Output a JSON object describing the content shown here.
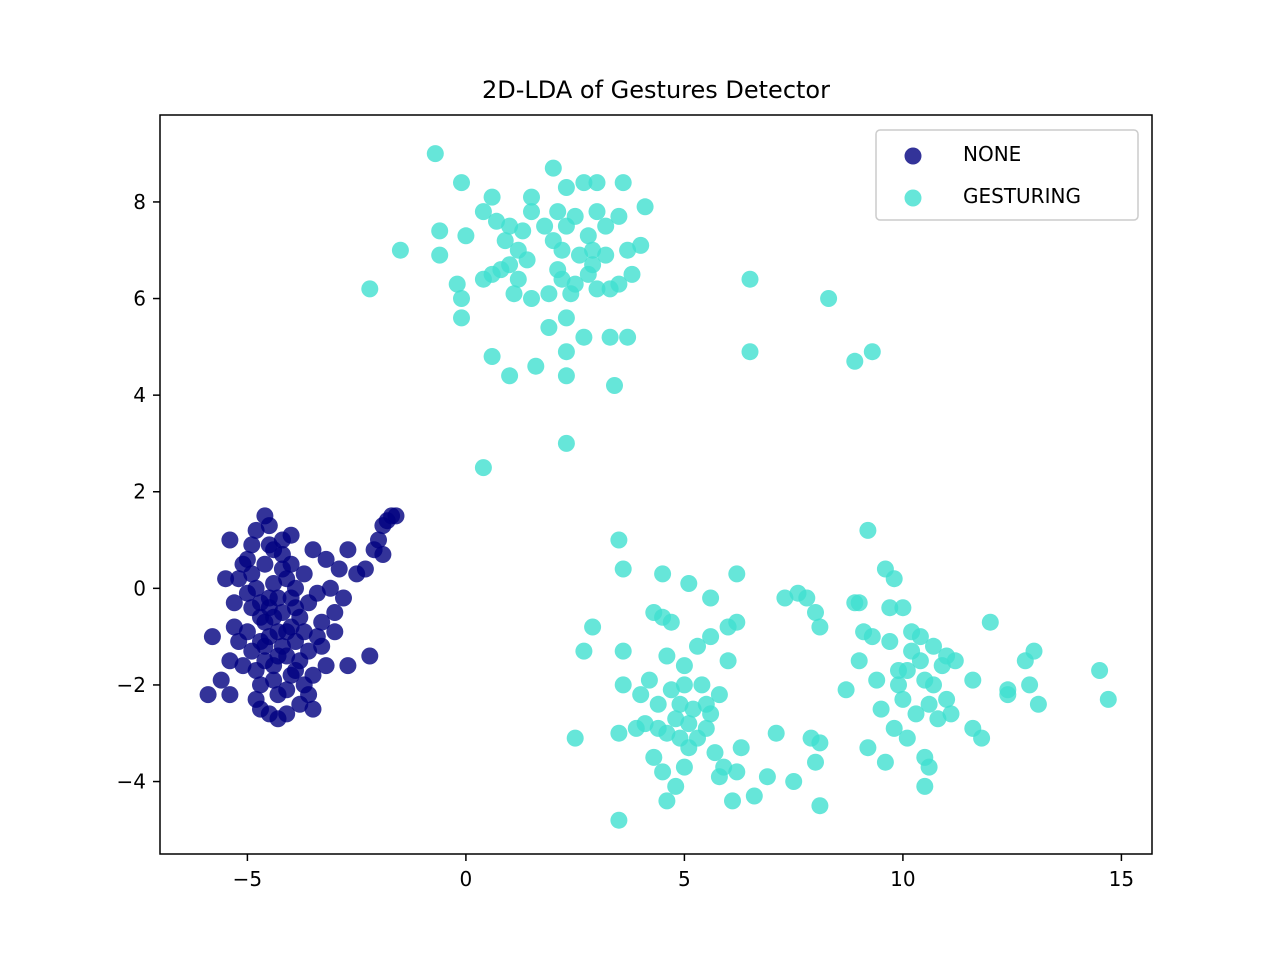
{
  "chart_data": {
    "type": "scatter",
    "title": "2D-LDA of Gestures Detector",
    "xlabel": "",
    "ylabel": "",
    "xlim": [
      -7.0,
      15.7
    ],
    "ylim": [
      -5.5,
      9.8
    ],
    "xticks": [
      -5,
      0,
      5,
      10,
      15
    ],
    "xtick_labels": [
      "−5",
      "0",
      "5",
      "10",
      "15"
    ],
    "yticks": [
      -4,
      -2,
      0,
      2,
      4,
      6,
      8
    ],
    "ytick_labels": [
      "−4",
      "−2",
      "0",
      "2",
      "4",
      "6",
      "8"
    ],
    "grid": false,
    "legend_position": "top-right",
    "series": [
      {
        "name": "NONE",
        "color": "#000080",
        "points": [
          [
            -5.9,
            -2.2
          ],
          [
            -5.8,
            -1.0
          ],
          [
            -5.6,
            -1.9
          ],
          [
            -5.5,
            0.2
          ],
          [
            -5.4,
            -2.2
          ],
          [
            -5.4,
            1.0
          ],
          [
            -5.3,
            -0.8
          ],
          [
            -5.2,
            0.2
          ],
          [
            -5.1,
            -1.6
          ],
          [
            -5.0,
            0.6
          ],
          [
            -4.9,
            -0.4
          ],
          [
            -4.8,
            1.2
          ],
          [
            -4.8,
            -2.3
          ],
          [
            -4.7,
            -1.1
          ],
          [
            -4.6,
            1.5
          ],
          [
            -4.5,
            -0.2
          ],
          [
            -4.5,
            -2.6
          ],
          [
            -4.4,
            0.8
          ],
          [
            -4.3,
            -1.4
          ],
          [
            -4.3,
            -2.7
          ],
          [
            -4.2,
            0.4
          ],
          [
            -4.1,
            -0.9
          ],
          [
            -4.0,
            -1.8
          ],
          [
            -4.0,
            1.1
          ],
          [
            -3.9,
            0.0
          ],
          [
            -3.8,
            -0.6
          ],
          [
            -3.8,
            -2.4
          ],
          [
            -3.7,
            0.3
          ],
          [
            -3.6,
            -1.3
          ],
          [
            -3.5,
            0.8
          ],
          [
            -3.5,
            -2.5
          ],
          [
            -3.4,
            -0.1
          ],
          [
            -3.3,
            -0.7
          ],
          [
            -3.2,
            0.6
          ],
          [
            -3.2,
            -1.6
          ],
          [
            -3.1,
            0.0
          ],
          [
            -3.0,
            -0.9
          ],
          [
            -2.9,
            0.4
          ],
          [
            -2.8,
            -0.2
          ],
          [
            -2.7,
            -1.6
          ],
          [
            -2.7,
            0.8
          ],
          [
            -2.5,
            0.3
          ],
          [
            -2.3,
            0.4
          ],
          [
            -2.2,
            -1.4
          ],
          [
            -2.1,
            0.8
          ],
          [
            -2.0,
            1.0
          ],
          [
            -1.9,
            0.7
          ],
          [
            -1.9,
            1.3
          ],
          [
            -1.8,
            1.4
          ],
          [
            -1.7,
            1.5
          ],
          [
            -1.6,
            1.5
          ],
          [
            -5.0,
            -0.9
          ],
          [
            -4.7,
            -0.3
          ],
          [
            -4.6,
            0.5
          ],
          [
            -4.4,
            -1.9
          ],
          [
            -4.2,
            -0.5
          ],
          [
            -4.1,
            0.2
          ],
          [
            -3.9,
            -1.1
          ],
          [
            -3.7,
            -2.0
          ],
          [
            -3.6,
            -0.3
          ],
          [
            -4.9,
            -1.3
          ],
          [
            -4.5,
            -1.0
          ],
          [
            -4.3,
            -0.2
          ],
          [
            -4.0,
            -0.8
          ],
          [
            -4.6,
            -1.5
          ],
          [
            -4.4,
            0.1
          ],
          [
            -4.2,
            -1.2
          ],
          [
            -3.9,
            -0.4
          ],
          [
            -4.8,
            0.0
          ],
          [
            -4.5,
            0.9
          ],
          [
            -5.2,
            -1.1
          ],
          [
            -4.7,
            -2.0
          ],
          [
            -4.3,
            -2.2
          ],
          [
            -4.1,
            -2.1
          ],
          [
            -3.4,
            -1.0
          ],
          [
            -3.0,
            -0.5
          ],
          [
            -5.3,
            -0.3
          ],
          [
            -5.1,
            0.5
          ],
          [
            -4.9,
            0.9
          ],
          [
            -4.6,
            -0.7
          ],
          [
            -4.4,
            -1.6
          ],
          [
            -4.2,
            1.0
          ],
          [
            -4.0,
            0.5
          ],
          [
            -3.8,
            -1.5
          ],
          [
            -3.3,
            -1.2
          ],
          [
            -4.7,
            -0.6
          ],
          [
            -4.5,
            -0.4
          ],
          [
            -4.3,
            -0.9
          ],
          [
            -4.1,
            -1.4
          ],
          [
            -3.9,
            -1.7
          ],
          [
            -4.8,
            -1.7
          ],
          [
            -5.0,
            -0.1
          ],
          [
            -4.6,
            -1.2
          ],
          [
            -4.4,
            -0.6
          ],
          [
            -4.2,
            0.7
          ],
          [
            -4.0,
            -0.2
          ],
          [
            -3.7,
            -0.9
          ],
          [
            -3.5,
            -1.8
          ],
          [
            -4.9,
            0.3
          ],
          [
            -5.4,
            -1.5
          ],
          [
            -4.5,
            1.3
          ],
          [
            -4.1,
            -2.6
          ],
          [
            -3.6,
            -2.2
          ],
          [
            -4.7,
            -2.5
          ]
        ]
      },
      {
        "name": "GESTURING",
        "color": "#40E0D0",
        "points": [
          [
            -0.7,
            9.0
          ],
          [
            -0.1,
            8.4
          ],
          [
            -2.2,
            6.2
          ],
          [
            -1.5,
            7.0
          ],
          [
            -0.6,
            7.4
          ],
          [
            -0.6,
            6.9
          ],
          [
            -0.2,
            6.3
          ],
          [
            -0.1,
            6.0
          ],
          [
            -0.1,
            5.6
          ],
          [
            0.0,
            7.3
          ],
          [
            0.4,
            7.8
          ],
          [
            0.6,
            8.1
          ],
          [
            0.7,
            7.6
          ],
          [
            0.8,
            6.6
          ],
          [
            0.9,
            7.2
          ],
          [
            1.0,
            7.5
          ],
          [
            1.0,
            6.7
          ],
          [
            1.1,
            6.1
          ],
          [
            1.2,
            7.0
          ],
          [
            1.3,
            7.4
          ],
          [
            1.4,
            6.8
          ],
          [
            1.5,
            8.1
          ],
          [
            1.5,
            6.0
          ],
          [
            1.5,
            7.8
          ],
          [
            1.9,
            6.1
          ],
          [
            2.0,
            7.2
          ],
          [
            2.0,
            8.7
          ],
          [
            2.1,
            7.8
          ],
          [
            2.1,
            6.6
          ],
          [
            2.2,
            7.0
          ],
          [
            2.2,
            6.4
          ],
          [
            2.3,
            8.3
          ],
          [
            2.3,
            7.5
          ],
          [
            2.3,
            5.6
          ],
          [
            2.4,
            6.1
          ],
          [
            2.5,
            7.7
          ],
          [
            2.6,
            6.9
          ],
          [
            2.7,
            8.4
          ],
          [
            2.8,
            7.3
          ],
          [
            2.8,
            6.5
          ],
          [
            2.9,
            7.0
          ],
          [
            3.0,
            8.4
          ],
          [
            3.0,
            7.8
          ],
          [
            3.0,
            6.2
          ],
          [
            3.2,
            7.5
          ],
          [
            3.2,
            6.9
          ],
          [
            3.3,
            5.2
          ],
          [
            3.5,
            6.3
          ],
          [
            3.5,
            7.7
          ],
          [
            3.6,
            8.4
          ],
          [
            3.7,
            7.0
          ],
          [
            3.7,
            5.2
          ],
          [
            3.8,
            6.5
          ],
          [
            4.0,
            7.1
          ],
          [
            4.1,
            7.9
          ],
          [
            0.6,
            4.8
          ],
          [
            1.0,
            4.4
          ],
          [
            1.6,
            4.6
          ],
          [
            1.9,
            5.4
          ],
          [
            2.3,
            4.4
          ],
          [
            2.3,
            4.9
          ],
          [
            2.7,
            5.2
          ],
          [
            3.4,
            4.2
          ],
          [
            2.3,
            3.0
          ],
          [
            0.4,
            2.5
          ],
          [
            0.6,
            6.5
          ],
          [
            0.4,
            6.4
          ],
          [
            1.8,
            7.5
          ],
          [
            2.5,
            6.3
          ],
          [
            2.9,
            6.7
          ],
          [
            3.3,
            6.2
          ],
          [
            1.2,
            6.4
          ],
          [
            6.5,
            6.4
          ],
          [
            6.5,
            4.9
          ],
          [
            8.3,
            6.0
          ],
          [
            8.9,
            4.7
          ],
          [
            9.3,
            4.9
          ],
          [
            3.5,
            1.0
          ],
          [
            3.6,
            0.4
          ],
          [
            4.5,
            0.3
          ],
          [
            5.1,
            0.1
          ],
          [
            5.6,
            -0.2
          ],
          [
            4.3,
            -0.5
          ],
          [
            4.5,
            -0.6
          ],
          [
            4.7,
            -0.7
          ],
          [
            2.9,
            -0.8
          ],
          [
            2.7,
            -1.3
          ],
          [
            3.6,
            -2.0
          ],
          [
            4.0,
            -2.2
          ],
          [
            4.2,
            -1.9
          ],
          [
            4.4,
            -2.4
          ],
          [
            4.6,
            -1.4
          ],
          [
            4.7,
            -2.1
          ],
          [
            4.8,
            -2.7
          ],
          [
            4.9,
            -3.1
          ],
          [
            5.0,
            -1.6
          ],
          [
            5.1,
            -3.3
          ],
          [
            5.2,
            -2.5
          ],
          [
            5.3,
            -1.2
          ],
          [
            5.4,
            -2.0
          ],
          [
            5.5,
            -2.9
          ],
          [
            5.6,
            -1.0
          ],
          [
            5.7,
            -3.4
          ],
          [
            5.8,
            -2.2
          ],
          [
            5.9,
            -3.7
          ],
          [
            6.0,
            -1.5
          ],
          [
            4.3,
            -3.5
          ],
          [
            4.5,
            -3.8
          ],
          [
            4.8,
            -4.1
          ],
          [
            5.0,
            -3.7
          ],
          [
            3.5,
            -4.8
          ],
          [
            2.5,
            -3.1
          ],
          [
            3.5,
            -3.0
          ],
          [
            3.9,
            -2.9
          ],
          [
            4.6,
            -4.4
          ],
          [
            6.1,
            -4.4
          ],
          [
            6.2,
            -3.8
          ],
          [
            6.3,
            -3.3
          ],
          [
            6.6,
            -4.3
          ],
          [
            6.9,
            -3.9
          ],
          [
            7.1,
            -3.0
          ],
          [
            7.3,
            -0.2
          ],
          [
            7.6,
            -0.1
          ],
          [
            7.8,
            -0.2
          ],
          [
            8.0,
            -0.5
          ],
          [
            8.1,
            -0.8
          ],
          [
            7.9,
            -3.1
          ],
          [
            8.1,
            -3.2
          ],
          [
            8.1,
            -4.5
          ],
          [
            7.5,
            -4.0
          ],
          [
            8.0,
            -3.6
          ],
          [
            6.2,
            0.3
          ],
          [
            6.0,
            -0.8
          ],
          [
            6.2,
            -0.7
          ],
          [
            8.7,
            -2.1
          ],
          [
            8.9,
            -0.3
          ],
          [
            9.0,
            -1.5
          ],
          [
            9.0,
            -0.3
          ],
          [
            9.2,
            1.2
          ],
          [
            9.3,
            -1.0
          ],
          [
            9.4,
            -1.9
          ],
          [
            9.5,
            -2.5
          ],
          [
            9.6,
            -3.6
          ],
          [
            9.6,
            0.4
          ],
          [
            9.7,
            -0.4
          ],
          [
            9.7,
            -1.1
          ],
          [
            9.8,
            -2.9
          ],
          [
            9.8,
            0.2
          ],
          [
            9.9,
            -1.7
          ],
          [
            10.0,
            -0.4
          ],
          [
            10.0,
            -2.3
          ],
          [
            10.1,
            -3.1
          ],
          [
            10.2,
            -1.3
          ],
          [
            10.3,
            -2.6
          ],
          [
            10.4,
            -1.0
          ],
          [
            10.5,
            -1.9
          ],
          [
            10.5,
            -3.5
          ],
          [
            10.5,
            -4.1
          ],
          [
            10.6,
            -2.4
          ],
          [
            10.7,
            -1.2
          ],
          [
            10.8,
            -2.7
          ],
          [
            10.9,
            -1.6
          ],
          [
            11.0,
            -2.3
          ],
          [
            11.0,
            -1.4
          ],
          [
            11.1,
            -2.6
          ],
          [
            11.2,
            -1.5
          ],
          [
            11.6,
            -1.9
          ],
          [
            11.6,
            -2.9
          ],
          [
            11.8,
            -3.1
          ],
          [
            12.0,
            -0.7
          ],
          [
            12.4,
            -2.1
          ],
          [
            12.4,
            -2.2
          ],
          [
            12.8,
            -1.5
          ],
          [
            12.9,
            -2.0
          ],
          [
            13.0,
            -1.3
          ],
          [
            13.1,
            -2.4
          ],
          [
            14.5,
            -1.7
          ],
          [
            14.7,
            -2.3
          ],
          [
            10.2,
            -0.9
          ],
          [
            10.4,
            -1.5
          ],
          [
            10.7,
            -2.0
          ],
          [
            9.9,
            -2.0
          ],
          [
            10.1,
            -1.7
          ],
          [
            9.2,
            -3.3
          ],
          [
            10.6,
            -3.7
          ],
          [
            9.1,
            -0.9
          ],
          [
            4.9,
            -2.4
          ],
          [
            5.1,
            -2.8
          ],
          [
            5.3,
            -3.1
          ],
          [
            5.5,
            -2.4
          ],
          [
            4.4,
            -2.9
          ],
          [
            3.6,
            -1.3
          ],
          [
            4.1,
            -2.8
          ],
          [
            5.0,
            -2.0
          ],
          [
            5.6,
            -2.6
          ],
          [
            4.6,
            -3.0
          ],
          [
            5.8,
            -3.9
          ]
        ]
      }
    ]
  }
}
